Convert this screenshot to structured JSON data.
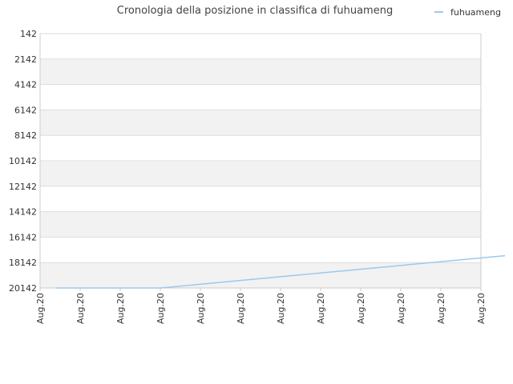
{
  "chart_data": {
    "type": "line",
    "title": "Cronologia della posizione in classifica di fuhuameng",
    "xlabel": "",
    "ylabel": "",
    "y_inverted": true,
    "ylim": [
      142,
      20142
    ],
    "y_ticks": [
      142,
      2142,
      4142,
      6142,
      8142,
      10142,
      12142,
      14142,
      16142,
      18142,
      20142
    ],
    "x_ticks": [
      "Aug.20",
      "Aug.20",
      "Aug.20",
      "Aug.20",
      "Aug.20",
      "Aug.20",
      "Aug.20",
      "Aug.20",
      "Aug.20",
      "Aug.20",
      "Aug.20",
      "Aug.20"
    ],
    "grid": true,
    "legend_position": "top-right",
    "colors": {
      "line": "#9cc8ee",
      "band": "#f2f2f2",
      "grid": "#dddddd",
      "axis": "#cccccc"
    },
    "series": [
      {
        "name": "fuhuameng",
        "x": [
          0.4,
          3.0,
          11.6
        ],
        "values": [
          20142,
          20142,
          17600
        ]
      }
    ]
  }
}
